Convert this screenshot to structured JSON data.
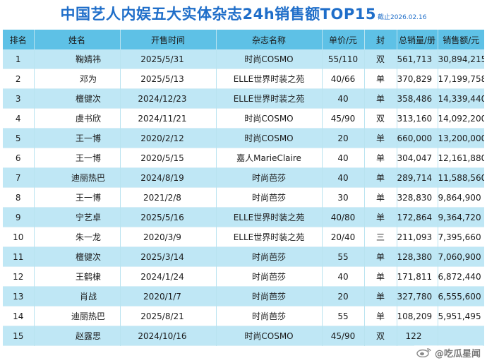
{
  "title": "中国艺人内娱五大实体杂志24h销售额TOP15",
  "date_note": "截止2026.02.16",
  "columns": [
    "排名",
    "姓名",
    "开售时间",
    "杂志名称",
    "单价/元",
    "封",
    "总销量/册",
    "销售额/元"
  ],
  "rows": [
    {
      "rank": "1",
      "name": "鞠婧祎",
      "date": "2025/5/31",
      "magazine": "时尚COSMO",
      "price": "55/110",
      "cover": "双",
      "volume": "561,713",
      "sales": "30,894,215"
    },
    {
      "rank": "2",
      "name": "邓为",
      "date": "2025/5/13",
      "magazine": "ELLE世界时装之苑",
      "price": "40/66",
      "cover": "单",
      "volume": "370,829",
      "sales": "17,199,758"
    },
    {
      "rank": "3",
      "name": "檀健次",
      "date": "2024/12/23",
      "magazine": "ELLE世界时装之苑",
      "price": "40",
      "cover": "单",
      "volume": "358,486",
      "sales": "14,339,440"
    },
    {
      "rank": "4",
      "name": "虞书欣",
      "date": "2024/11/21",
      "magazine": "时尚COSMO",
      "price": "45/90",
      "cover": "双",
      "volume": "313,160",
      "sales": "14,092,200,"
    },
    {
      "rank": "5",
      "name": "王一博",
      "date": "2020/2/12",
      "magazine": "时尚COSMO",
      "price": "20",
      "cover": "单",
      "volume": "660,000",
      "sales": "13,200,000"
    },
    {
      "rank": "6",
      "name": "王一博",
      "date": "2020/5/15",
      "magazine": "嘉人MarieClaire",
      "price": "40",
      "cover": "单",
      "volume": "304,047",
      "sales": "12,161,880"
    },
    {
      "rank": "7",
      "name": "迪丽热巴",
      "date": "2024/8/19",
      "magazine": "时尚芭莎",
      "price": "40",
      "cover": "单",
      "volume": "289,714",
      "sales": "11,588,560"
    },
    {
      "rank": "8",
      "name": "王一博",
      "date": "2021/2/8",
      "magazine": "时尚芭莎",
      "price": "30",
      "cover": "单",
      "volume": "328,830",
      "sales": "9,864,900"
    },
    {
      "rank": "9",
      "name": "宁艺卓",
      "date": "2025/5/16",
      "magazine": "ELLE世界时装之苑",
      "price": "40/80",
      "cover": "单",
      "volume": "172,864",
      "sales": "9,364,720"
    },
    {
      "rank": "10",
      "name": "朱一龙",
      "date": "2020/3/9",
      "magazine": "ELLE世界时装之苑",
      "price": "20/40",
      "cover": "三",
      "volume": "211,093",
      "sales": "7,395,660"
    },
    {
      "rank": "11",
      "name": "檀健次",
      "date": "2025/3/14",
      "magazine": "时尚芭莎",
      "price": "55",
      "cover": "单",
      "volume": "128,380",
      "sales": "7,060,900"
    },
    {
      "rank": "12",
      "name": "王鹤棣",
      "date": "2024/1/24",
      "magazine": "时尚芭莎",
      "price": "40",
      "cover": "单",
      "volume": "171,811",
      "sales": "6,872,440"
    },
    {
      "rank": "13",
      "name": "肖战",
      "date": "2020/1/7",
      "magazine": "时尚芭莎",
      "price": "20",
      "cover": "单",
      "volume": "327,780",
      "sales": "6,555,600"
    },
    {
      "rank": "14",
      "name": "迪丽热巴",
      "date": "2025/8/21",
      "magazine": "时尚芭莎",
      "price": "55",
      "cover": "单",
      "volume": "108,209",
      "sales": "5,951,495"
    },
    {
      "rank": "15",
      "name": "赵露思",
      "date": "2024/10/16",
      "magazine": "时尚COSMO",
      "price": "45/90",
      "cover": "双",
      "volume": "122",
      "sales": ""
    }
  ],
  "watermark": {
    "icon": "weibo-logo-icon",
    "text": "@吃瓜星闻"
  },
  "colors": {
    "title": "#1f6ec9",
    "header_bg": "#5ec1e6",
    "row_alt_bg": "#bfe7f5"
  }
}
